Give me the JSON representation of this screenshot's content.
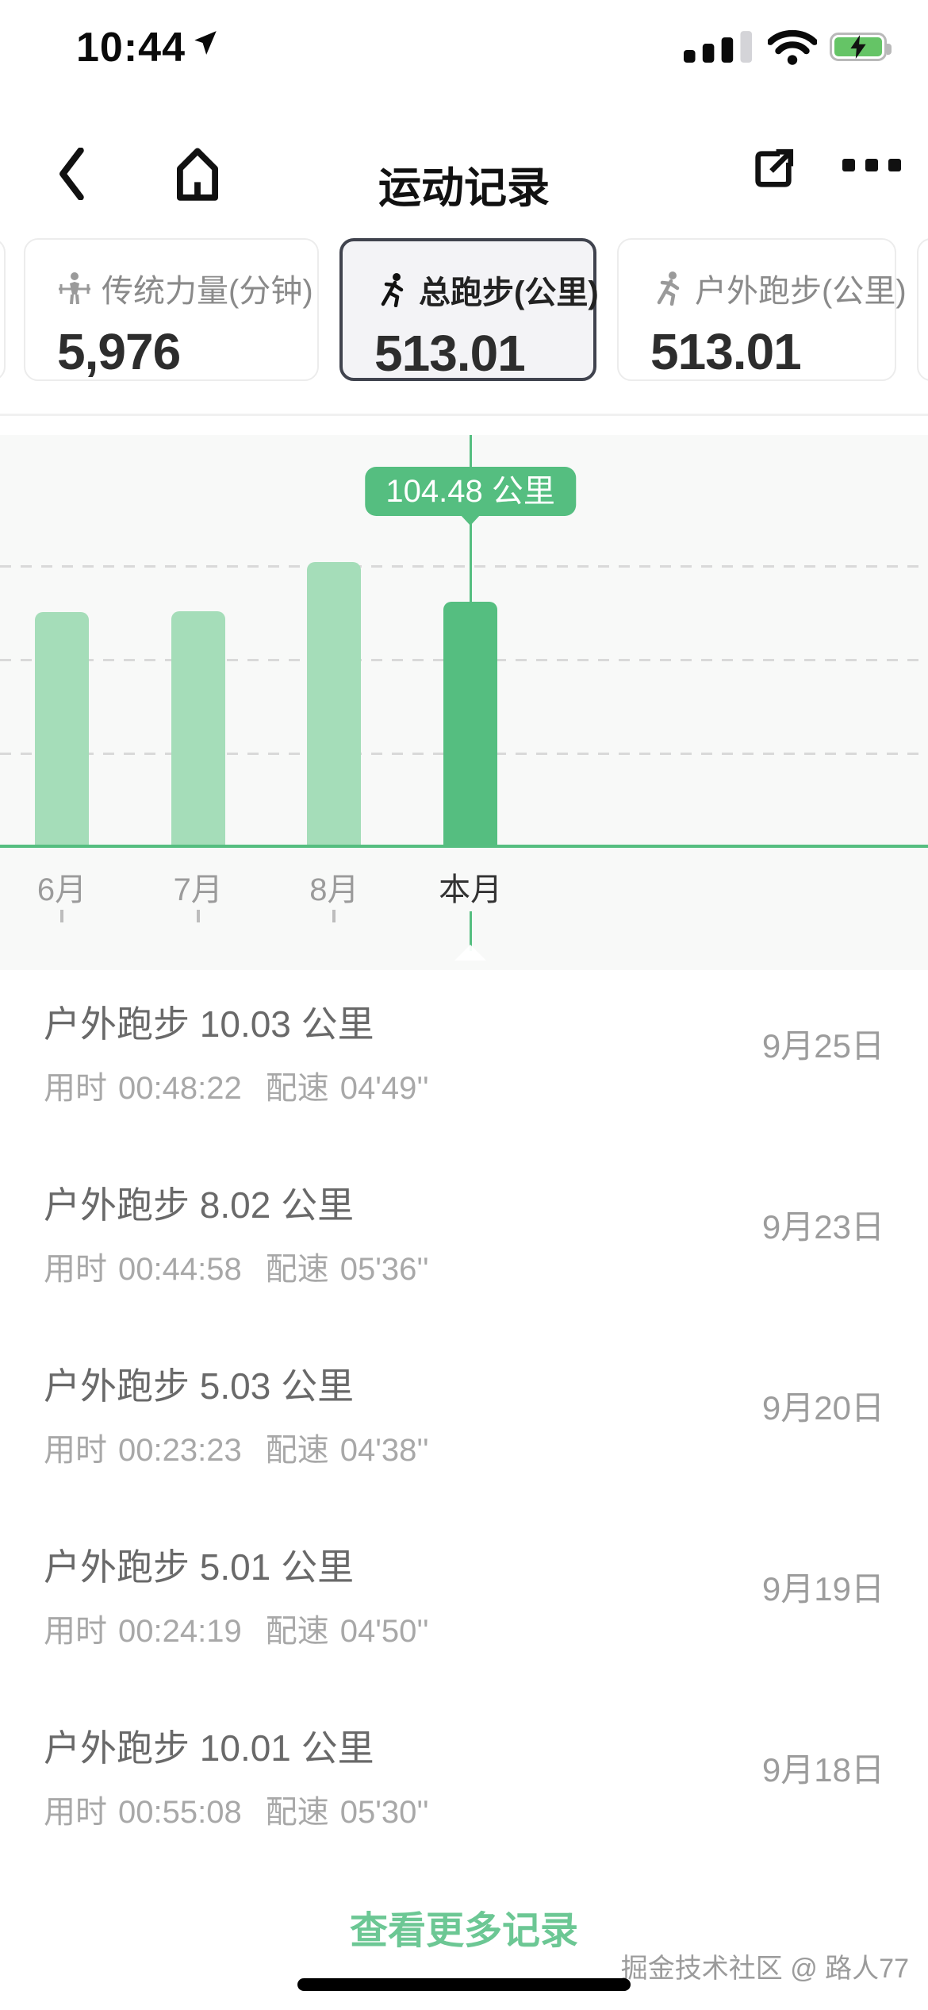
{
  "status_bar": {
    "time": "10:44",
    "icons": [
      "location-arrow-icon",
      "cellular-signal-icon",
      "wifi-icon",
      "battery-charging-icon"
    ],
    "battery_color": "#65C466"
  },
  "nav": {
    "title": "运动记录",
    "icons": [
      "back-chevron-icon",
      "home-icon",
      "share-icon",
      "more-ellipsis-icon"
    ]
  },
  "stat_cards": [
    {
      "label": "传统力量(分钟)",
      "value": "5,976",
      "icon": "strength-lifter-icon",
      "selected": false
    },
    {
      "label": "总跑步(公里)",
      "value": "513.01",
      "icon": "runner-icon",
      "selected": true
    },
    {
      "label": "户外跑步(公里)",
      "value": "513.01",
      "icon": "outdoor-runner-icon",
      "selected": false
    }
  ],
  "chart_data": {
    "type": "bar",
    "title": "",
    "categories": [
      "6月",
      "7月",
      "8月",
      "本月"
    ],
    "values": [
      100.0,
      100.3,
      121.4,
      104.48
    ],
    "unit": "公里",
    "highlighted_category": "本月",
    "tooltip_label": "104.48 公里",
    "tooltip_value": 104.48,
    "ylim": [
      0,
      140
    ],
    "gridlines": [
      40,
      80,
      120
    ],
    "grid": "dashed-horizontal",
    "legend": "none",
    "xlabel": "",
    "ylabel": "",
    "bar_color_light": "#A5DDB9",
    "bar_color_highlight": "#55BE80",
    "baseline_color": "#55BE80",
    "background": "#F8F9F8"
  },
  "records_labels": {
    "duration": "用时",
    "pace": "配速"
  },
  "records": [
    {
      "title": "户外跑步 10.03 公里",
      "duration": "00:48:22",
      "pace": "04'49''",
      "date": "9月25日"
    },
    {
      "title": "户外跑步 8.02 公里",
      "duration": "00:44:58",
      "pace": "05'36''",
      "date": "9月23日"
    },
    {
      "title": "户外跑步 5.03 公里",
      "duration": "00:23:23",
      "pace": "04'38''",
      "date": "9月20日"
    },
    {
      "title": "户外跑步 5.01 公里",
      "duration": "00:24:19",
      "pace": "04'50''",
      "date": "9月19日"
    },
    {
      "title": "户外跑步 10.01 公里",
      "duration": "00:55:08",
      "pace": "05'30''",
      "date": "9月18日"
    }
  ],
  "footer": {
    "more_label": "查看更多记录"
  },
  "watermark": {
    "text": "掘金技术社区 @ 路人77"
  },
  "colors": {
    "accent_green": "#55BE80",
    "light_green": "#A5DDB9",
    "link_green": "#6CC794",
    "selected_border": "#40434e",
    "chart_bg": "#F8F9F8"
  }
}
